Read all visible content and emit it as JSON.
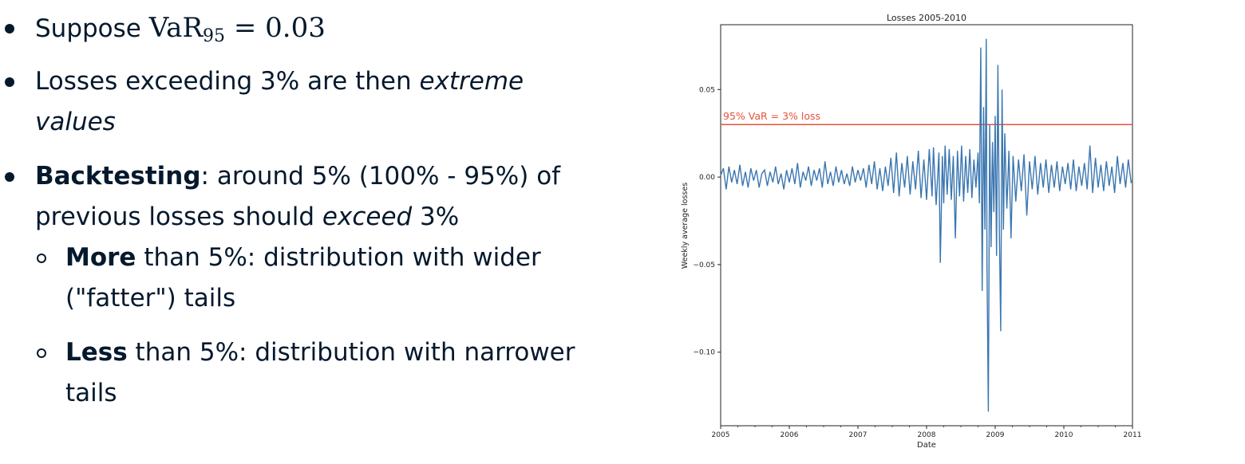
{
  "slide": {
    "bullets": [
      {
        "prefix": "Suppose ",
        "math_var": "VaR",
        "math_sub": "95",
        "math_rest": " = 0.03"
      },
      {
        "line1_a": "Losses exceeding 3% are then ",
        "line1_em": "extreme",
        "line2_em": "values"
      },
      {
        "bold": "Backtesting",
        "line1_rest": ": around 5% (100% - 95%) of",
        "line2_a": "previous losses should ",
        "line2_em": "exceed",
        "line2_b": " 3%"
      }
    ],
    "subbullets": [
      {
        "bold": "More",
        "line1_rest": " than 5%: distribution with wider",
        "line2": "(\"fatter\") tails"
      },
      {
        "bold": "Less",
        "line1_rest": " than 5%: distribution with narrower",
        "line2": "tails"
      }
    ]
  },
  "chart_data": {
    "type": "line",
    "title": "Losses 2005-2010",
    "xlabel": "Date",
    "ylabel": "Weekly average losses",
    "xlim": [
      2005,
      2011
    ],
    "ylim": [
      -0.142,
      0.087
    ],
    "x_ticks": [
      "2005",
      "2006",
      "2007",
      "2008",
      "2009",
      "2010",
      "2011"
    ],
    "y_ticks": [
      0.05,
      0.0,
      -0.05,
      -0.1
    ],
    "y_tick_labels": [
      "0.05",
      "0.00",
      "−0.05",
      "−0.10"
    ],
    "hline": {
      "y": 0.03,
      "label": "95% VaR = 3% loss",
      "color": "#e8503a"
    },
    "series_color": "#3a76b0",
    "series": [
      {
        "points": [
          [
            2005.0,
            0.001
          ],
          [
            2005.04,
            0.005
          ],
          [
            2005.08,
            -0.007
          ],
          [
            2005.12,
            0.006
          ],
          [
            2005.16,
            -0.003
          ],
          [
            2005.2,
            0.004
          ],
          [
            2005.24,
            -0.004
          ],
          [
            2005.28,
            0.007
          ],
          [
            2005.32,
            -0.005
          ],
          [
            2005.36,
            0.003
          ],
          [
            2005.4,
            -0.006
          ],
          [
            2005.44,
            0.005
          ],
          [
            2005.48,
            -0.002
          ],
          [
            2005.52,
            0.004
          ],
          [
            2005.56,
            -0.006
          ],
          [
            2005.6,
            0.002
          ],
          [
            2005.64,
            0.004
          ],
          [
            2005.68,
            -0.005
          ],
          [
            2005.72,
            0.003
          ],
          [
            2005.76,
            -0.003
          ],
          [
            2005.8,
            0.006
          ],
          [
            2005.84,
            -0.004
          ],
          [
            2005.88,
            0.002
          ],
          [
            2005.92,
            -0.007
          ],
          [
            2005.96,
            0.004
          ],
          [
            2006.0,
            -0.003
          ],
          [
            2006.04,
            0.005
          ],
          [
            2006.08,
            -0.004
          ],
          [
            2006.12,
            0.008
          ],
          [
            2006.16,
            -0.006
          ],
          [
            2006.2,
            0.003
          ],
          [
            2006.24,
            -0.002
          ],
          [
            2006.28,
            0.006
          ],
          [
            2006.32,
            -0.005
          ],
          [
            2006.36,
            0.004
          ],
          [
            2006.4,
            -0.002
          ],
          [
            2006.44,
            0.005
          ],
          [
            2006.48,
            -0.006
          ],
          [
            2006.52,
            0.009
          ],
          [
            2006.56,
            -0.004
          ],
          [
            2006.6,
            0.003
          ],
          [
            2006.64,
            -0.005
          ],
          [
            2006.68,
            0.006
          ],
          [
            2006.72,
            -0.003
          ],
          [
            2006.76,
            0.004
          ],
          [
            2006.8,
            -0.004
          ],
          [
            2006.84,
            0.002
          ],
          [
            2006.88,
            -0.005
          ],
          [
            2006.92,
            0.006
          ],
          [
            2006.96,
            -0.003
          ],
          [
            2007.0,
            0.004
          ],
          [
            2007.04,
            -0.002
          ],
          [
            2007.08,
            0.005
          ],
          [
            2007.12,
            -0.006
          ],
          [
            2007.16,
            0.007
          ],
          [
            2007.2,
            -0.004
          ],
          [
            2007.24,
            0.009
          ],
          [
            2007.28,
            -0.007
          ],
          [
            2007.32,
            0.005
          ],
          [
            2007.36,
            -0.008
          ],
          [
            2007.4,
            0.006
          ],
          [
            2007.44,
            -0.005
          ],
          [
            2007.48,
            0.011
          ],
          [
            2007.52,
            -0.009
          ],
          [
            2007.56,
            0.014
          ],
          [
            2007.6,
            -0.011
          ],
          [
            2007.64,
            0.008
          ],
          [
            2007.68,
            -0.006
          ],
          [
            2007.72,
            0.012
          ],
          [
            2007.76,
            -0.01
          ],
          [
            2007.8,
            0.009
          ],
          [
            2007.84,
            -0.007
          ],
          [
            2007.88,
            0.015
          ],
          [
            2007.92,
            -0.012
          ],
          [
            2007.96,
            0.01
          ],
          [
            2008.0,
            -0.013
          ],
          [
            2008.04,
            0.016
          ],
          [
            2008.08,
            -0.011
          ],
          [
            2008.1,
            0.017
          ],
          [
            2008.14,
            -0.016
          ],
          [
            2008.18,
            0.014
          ],
          [
            2008.2,
            -0.049
          ],
          [
            2008.23,
            0.012
          ],
          [
            2008.25,
            -0.015
          ],
          [
            2008.27,
            0.018
          ],
          [
            2008.3,
            -0.01
          ],
          [
            2008.33,
            0.016
          ],
          [
            2008.36,
            -0.013
          ],
          [
            2008.39,
            0.012
          ],
          [
            2008.42,
            -0.035
          ],
          [
            2008.45,
            0.015
          ],
          [
            2008.48,
            -0.011
          ],
          [
            2008.51,
            0.018
          ],
          [
            2008.54,
            -0.014
          ],
          [
            2008.57,
            0.012
          ],
          [
            2008.6,
            -0.009
          ],
          [
            2008.63,
            0.016
          ],
          [
            2008.66,
            -0.012
          ],
          [
            2008.69,
            0.01
          ],
          [
            2008.72,
            -0.006
          ],
          [
            2008.75,
            0.014
          ],
          [
            2008.77,
            -0.015
          ],
          [
            2008.79,
            0.074
          ],
          [
            2008.81,
            -0.065
          ],
          [
            2008.83,
            0.04
          ],
          [
            2008.85,
            -0.03
          ],
          [
            2008.87,
            0.079
          ],
          [
            2008.88,
            -0.05
          ],
          [
            2008.9,
            -0.134
          ],
          [
            2008.92,
            0.03
          ],
          [
            2008.94,
            -0.04
          ],
          [
            2008.96,
            0.02
          ],
          [
            2008.98,
            -0.02
          ],
          [
            2009.0,
            0.035
          ],
          [
            2009.02,
            -0.045
          ],
          [
            2009.04,
            0.064
          ],
          [
            2009.06,
            -0.03
          ],
          [
            2009.08,
            -0.088
          ],
          [
            2009.1,
            0.05
          ],
          [
            2009.12,
            -0.03
          ],
          [
            2009.14,
            0.025
          ],
          [
            2009.17,
            -0.018
          ],
          [
            2009.2,
            0.015
          ],
          [
            2009.23,
            -0.035
          ],
          [
            2009.26,
            0.012
          ],
          [
            2009.3,
            -0.014
          ],
          [
            2009.34,
            0.01
          ],
          [
            2009.38,
            -0.008
          ],
          [
            2009.42,
            0.013
          ],
          [
            2009.46,
            -0.022
          ],
          [
            2009.5,
            0.009
          ],
          [
            2009.54,
            -0.007
          ],
          [
            2009.58,
            0.012
          ],
          [
            2009.62,
            -0.01
          ],
          [
            2009.66,
            0.008
          ],
          [
            2009.7,
            -0.006
          ],
          [
            2009.74,
            0.01
          ],
          [
            2009.78,
            -0.009
          ],
          [
            2009.82,
            0.007
          ],
          [
            2009.86,
            -0.006
          ],
          [
            2009.9,
            0.009
          ],
          [
            2009.94,
            -0.008
          ],
          [
            2009.98,
            0.006
          ],
          [
            2010.02,
            -0.004
          ],
          [
            2010.06,
            0.008
          ],
          [
            2010.1,
            -0.007
          ],
          [
            2010.14,
            0.01
          ],
          [
            2010.18,
            -0.008
          ],
          [
            2010.22,
            0.006
          ],
          [
            2010.26,
            -0.005
          ],
          [
            2010.3,
            0.008
          ],
          [
            2010.34,
            -0.007
          ],
          [
            2010.38,
            0.018
          ],
          [
            2010.42,
            -0.009
          ],
          [
            2010.46,
            0.011
          ],
          [
            2010.5,
            -0.006
          ],
          [
            2010.54,
            0.007
          ],
          [
            2010.58,
            -0.008
          ],
          [
            2010.62,
            0.009
          ],
          [
            2010.66,
            -0.005
          ],
          [
            2010.7,
            0.006
          ],
          [
            2010.74,
            -0.009
          ],
          [
            2010.78,
            0.012
          ],
          [
            2010.82,
            -0.004
          ],
          [
            2010.86,
            0.008
          ],
          [
            2010.9,
            -0.006
          ],
          [
            2010.94,
            0.01
          ],
          [
            2010.98,
            -0.003
          ],
          [
            2011.0,
            -0.002
          ]
        ]
      }
    ]
  }
}
